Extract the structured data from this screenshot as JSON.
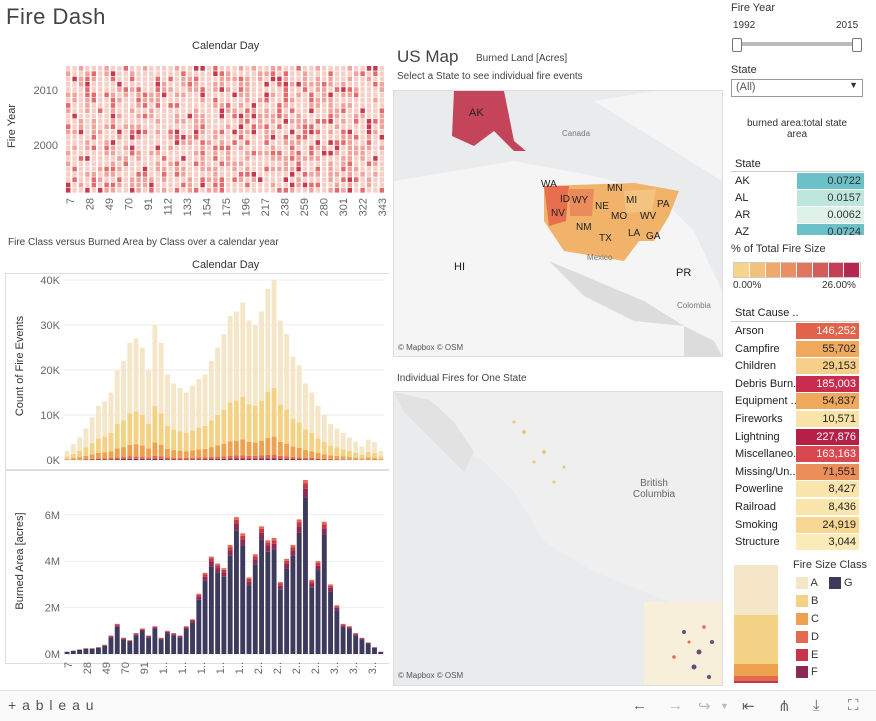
{
  "app": {
    "title": "Fire Dash",
    "footer_logo": "+ a b l e a u"
  },
  "calendar_heatmap": {
    "title": "Calendar Day",
    "ylabel": "Fire Year",
    "y_ticks": [
      "2010",
      "2000"
    ],
    "x_ticks": [
      "7",
      "28",
      "49",
      "70",
      "91",
      "112",
      "133",
      "154",
      "175",
      "196",
      "217",
      "238",
      "259",
      "280",
      "301",
      "322",
      "343"
    ],
    "colors": [
      "#f8cfc6",
      "#f0a39a",
      "#e56a6a",
      "#c8394e"
    ]
  },
  "section_caption": "Fire Class versus Burned Area by Class over a calendar year",
  "count_chart": {
    "title": "Calendar Day",
    "ylabel": "Count of Fire Events",
    "y_ticks": [
      "40K",
      "30K",
      "20K",
      "10K",
      "0K"
    ],
    "chart_data": {
      "type": "bar",
      "title": "Calendar Day",
      "ylabel": "Count of Fire Events",
      "ylim": [
        0,
        40000
      ],
      "values": [
        2000,
        3500,
        5000,
        7000,
        9500,
        12000,
        13000,
        15000,
        20000,
        22000,
        26000,
        27000,
        25000,
        20000,
        30000,
        26000,
        19000,
        17000,
        16000,
        15000,
        16500,
        18000,
        19000,
        22000,
        25000,
        28000,
        32000,
        33000,
        35000,
        31000,
        30000,
        33000,
        38000,
        40000,
        31000,
        28000,
        23000,
        21000,
        17000,
        15000,
        12000,
        10000,
        8000,
        7000,
        6000,
        5000,
        4000,
        3000,
        4500,
        4000,
        2000
      ]
    }
  },
  "burned_chart": {
    "ylabel": "Burned Area [acres]",
    "y_ticks": [
      "6M",
      "4M",
      "2M",
      "0M"
    ],
    "x_ticks": [
      "7",
      "28",
      "49",
      "70",
      "91",
      "1..",
      "1..",
      "1..",
      "1..",
      "1..",
      "2..",
      "2..",
      "2..",
      "2..",
      "3..",
      "3..",
      "3.."
    ],
    "chart_data": {
      "type": "bar",
      "ylabel": "Burned Area [acres]",
      "ylim": [
        0,
        7500000
      ],
      "values": [
        100000,
        150000,
        200000,
        250000,
        250000,
        300000,
        400000,
        800000,
        1300000,
        700000,
        600000,
        900000,
        1100000,
        800000,
        1200000,
        700000,
        1000000,
        900000,
        800000,
        1200000,
        1500000,
        2600000,
        3500000,
        4200000,
        3900000,
        3700000,
        4700000,
        5900000,
        5200000,
        3300000,
        4300000,
        5500000,
        4900000,
        5000000,
        3100000,
        4100000,
        4700000,
        5800000,
        7500000,
        3200000,
        4000000,
        5700000,
        3000000,
        2100000,
        1300000,
        1200000,
        900000,
        700000,
        500000,
        300000,
        100000
      ]
    }
  },
  "us_map": {
    "title": "US Map",
    "subtitle": "Burned Land [Acres]",
    "instruction": "Select a State to see individual fire events",
    "credit": "© Mapbox  © OSM",
    "labels": {
      "ak": "AK",
      "hi": "HI",
      "pr": "PR",
      "canada": "Canada",
      "mexico": "Mexico",
      "colombia": "Colombia"
    },
    "state_labels": [
      "WA",
      "ID",
      "WY",
      "MN",
      "NV",
      "NE",
      "MI",
      "PA",
      "MO",
      "WV",
      "NM",
      "TX",
      "LA",
      "GA"
    ]
  },
  "fires_map": {
    "title": "Individual Fires for One State",
    "region_label": "British Columbia",
    "credit": "© Mapbox  © OSM"
  },
  "filters": {
    "fire_year_label": "Fire Year",
    "year_min": "1992",
    "year_max": "2015",
    "state_label": "State",
    "state_value": "(All)"
  },
  "ratio_title": "burned area:total state area",
  "state_table": {
    "header": "State",
    "rows": [
      {
        "state": "AK",
        "value": "0.0722",
        "color": "#6cc1c8"
      },
      {
        "state": "AL",
        "value": "0.0157",
        "color": "#bfe6da"
      },
      {
        "state": "AR",
        "value": "0.0062",
        "color": "#dff2ea"
      },
      {
        "state": "AZ",
        "value": "0.0724",
        "color": "#6cc1c8"
      }
    ]
  },
  "pct_legend": {
    "title": "% of Total Fire Size",
    "min": "0.00%",
    "max": "26.00%",
    "colors": [
      "#f6d58a",
      "#f3c079",
      "#efa96b",
      "#ea8f62",
      "#e2755d",
      "#d65b5a",
      "#c63e57",
      "#b52751"
    ]
  },
  "cause_table": {
    "header": "Stat Cause ..",
    "rows": [
      {
        "cause": "Arson",
        "value": "146,252",
        "color": "#e1634c"
      },
      {
        "cause": "Campfire",
        "value": "55,702",
        "color": "#f0a95c"
      },
      {
        "cause": "Children",
        "value": "29,153",
        "color": "#f6d08a"
      },
      {
        "cause": "Debris Burn..",
        "value": "185,003",
        "color": "#c92c4e"
      },
      {
        "cause": "Equipment ..",
        "value": "54,837",
        "color": "#f0a95c"
      },
      {
        "cause": "Fireworks",
        "value": "10,571",
        "color": "#f9e3a6"
      },
      {
        "cause": "Lightning",
        "value": "227,876",
        "color": "#b61f47"
      },
      {
        "cause": "Miscellaneo..",
        "value": "163,163",
        "color": "#d9484f"
      },
      {
        "cause": "Missing/Un..",
        "value": "71,551",
        "color": "#ec8e59"
      },
      {
        "cause": "Powerline",
        "value": "8,427",
        "color": "#fae6ac"
      },
      {
        "cause": "Railroad",
        "value": "8,436",
        "color": "#fae6ac"
      },
      {
        "cause": "Smoking",
        "value": "24,919",
        "color": "#f7d792"
      },
      {
        "cause": "Structure",
        "value": "3,044",
        "color": "#fbebb8"
      }
    ]
  },
  "size_legend": {
    "title": "Fire Size Class",
    "items": [
      {
        "label": "A",
        "color": "#f5e6c8"
      },
      {
        "label": "G",
        "color": "#3e3a5e"
      },
      {
        "label": "B",
        "color": "#f4d285"
      },
      {
        "label": "C",
        "color": "#eea24f"
      },
      {
        "label": "D",
        "color": "#e26a50"
      },
      {
        "label": "E",
        "color": "#c8354a"
      },
      {
        "label": "F",
        "color": "#8a2a55"
      }
    ]
  }
}
